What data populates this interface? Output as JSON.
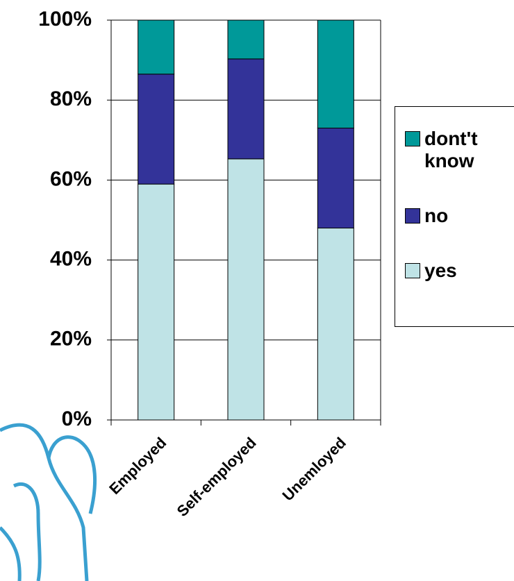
{
  "chart_data": {
    "type": "stacked-bar",
    "categories": [
      "Employed",
      "Self-employed",
      "Unemloyed"
    ],
    "series": [
      {
        "name": "yes",
        "color": "#bfe3e6",
        "values": [
          59,
          65.3,
          48
        ]
      },
      {
        "name": "no",
        "color": "#333399",
        "values": [
          27.5,
          25,
          25
        ]
      },
      {
        "name": "dont't know",
        "color": "#009999",
        "values": [
          13.5,
          9.7,
          27
        ]
      }
    ],
    "ylim": [
      0,
      100
    ],
    "yticks": [
      {
        "value": 0,
        "label": "0%"
      },
      {
        "value": 20,
        "label": "20%"
      },
      {
        "value": 40,
        "label": "40%"
      },
      {
        "value": 60,
        "label": "60%"
      },
      {
        "value": 80,
        "label": "80%"
      },
      {
        "value": 100,
        "label": "100%"
      }
    ],
    "grid": true
  }
}
